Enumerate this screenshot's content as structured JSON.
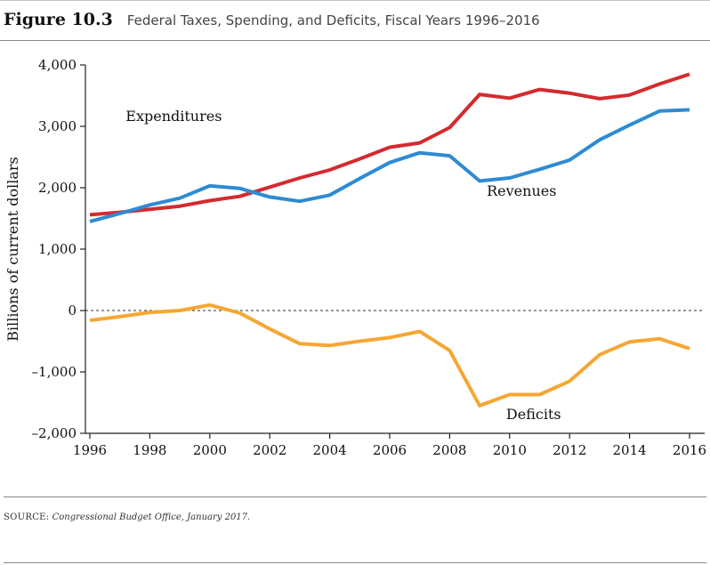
{
  "header": {
    "figure_label": "Figure 10.3",
    "title": "Federal Taxes, Spending, and Deficits, Fiscal Years 1996–2016"
  },
  "source": {
    "label": "SOURCE:",
    "text": "Congressional Budget Office, January 2017."
  },
  "colors": {
    "expenditures": "#d42a2f",
    "revenues": "#2e8bd2",
    "deficits": "#f5a733",
    "axis": "#222222"
  },
  "chart_data": {
    "type": "line",
    "title": "",
    "xlabel": "",
    "ylabel": "Billions of current dollars",
    "xlim": [
      1995.6,
      2016.6
    ],
    "ylim": [
      -2000,
      4000
    ],
    "x_ticks": [
      1996,
      1998,
      2000,
      2002,
      2004,
      2006,
      2008,
      2010,
      2012,
      2014,
      2016
    ],
    "y_ticks": [
      -2000,
      -1000,
      0,
      1000,
      2000,
      3000,
      4000
    ],
    "y_tick_labels": [
      "–2,000",
      "–1,000",
      "0",
      "1,000",
      "2,000",
      "3,000",
      "4,000"
    ],
    "reference_line": {
      "y": 0,
      "style": "dashed"
    },
    "grid": false,
    "x": [
      1996,
      1997,
      1998,
      1999,
      2000,
      2001,
      2002,
      2003,
      2004,
      2005,
      2006,
      2007,
      2008,
      2009,
      2010,
      2011,
      2012,
      2013,
      2014,
      2015,
      2016
    ],
    "series": [
      {
        "name": "Expenditures",
        "key": "expenditures",
        "label_at": [
          1998.8,
          3090
        ],
        "values": [
          1560,
          1600,
          1650,
          1700,
          1790,
          1860,
          2010,
          2160,
          2290,
          2470,
          2660,
          2730,
          2980,
          3520,
          3460,
          3600,
          3540,
          3450,
          3510,
          3690,
          3850
        ]
      },
      {
        "name": "Revenues",
        "key": "revenues",
        "label_at": [
          2010.4,
          1870
        ],
        "values": [
          1450,
          1580,
          1720,
          1830,
          2030,
          1990,
          1850,
          1780,
          1880,
          2150,
          2410,
          2570,
          2520,
          2110,
          2160,
          2300,
          2450,
          2780,
          3020,
          3250,
          3270
        ]
      },
      {
        "name": "Deficits",
        "key": "deficits",
        "label_at": [
          2010.8,
          -1770
        ],
        "values": [
          -160,
          -100,
          -30,
          0,
          90,
          -40,
          -300,
          -540,
          -570,
          -500,
          -440,
          -340,
          -650,
          -1550,
          -1370,
          -1370,
          -1150,
          -720,
          -510,
          -460,
          -620
        ]
      }
    ]
  }
}
